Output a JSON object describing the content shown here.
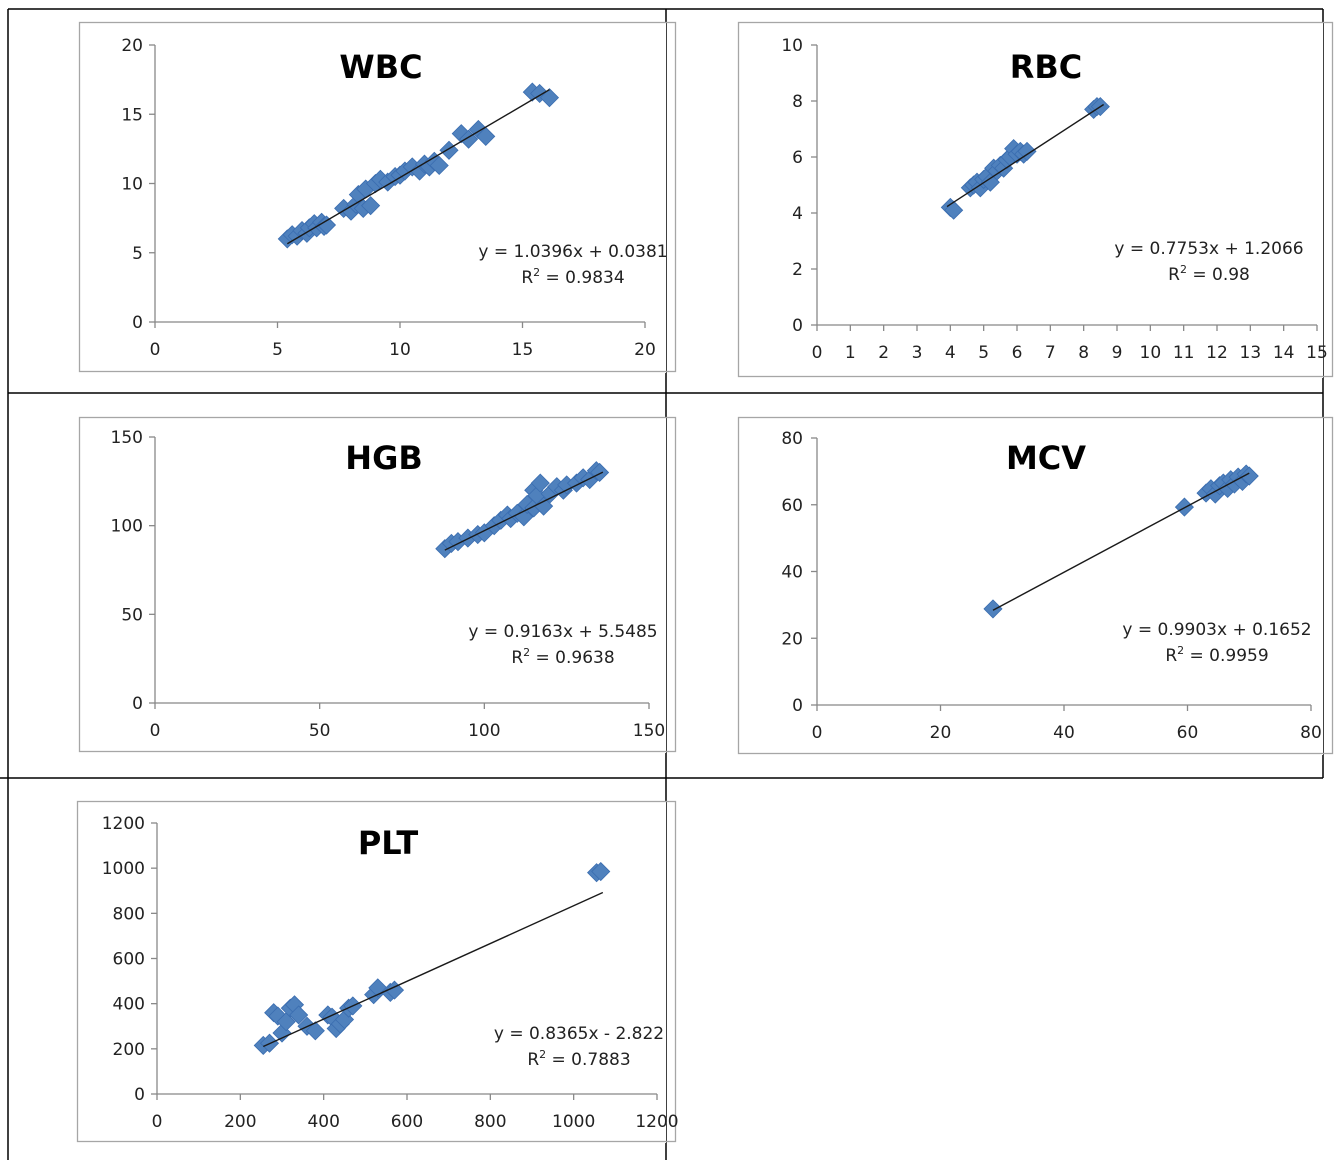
{
  "colors": {
    "marker": "#4F81BD",
    "marker_edge": "#3A6DB0",
    "trendline": "#1a1a1a",
    "axis": "#888888",
    "border": "#a6a6a6",
    "cell_line": "#000000"
  },
  "chart_data": [
    {
      "type": "scatter",
      "title": "WBC",
      "xlim": [
        0,
        20
      ],
      "ylim": [
        0,
        20
      ],
      "xticks": [
        "0",
        "5",
        "10",
        "15",
        "20"
      ],
      "yticks": [
        "0",
        "5",
        "10",
        "15",
        "20"
      ],
      "x": [
        5.4,
        5.6,
        5.8,
        6.0,
        6.2,
        6.3,
        6.5,
        6.6,
        6.8,
        6.9,
        7.0,
        7.7,
        8.0,
        8.2,
        8.3,
        8.5,
        8.6,
        8.8,
        9.0,
        9.2,
        9.5,
        9.8,
        10.0,
        10.2,
        10.5,
        10.8,
        11.0,
        11.2,
        11.4,
        11.6,
        12.0,
        12.5,
        12.8,
        13.2,
        13.5,
        15.4,
        15.7,
        16.1
      ],
      "y": [
        6.0,
        6.3,
        6.2,
        6.6,
        6.4,
        6.8,
        7.1,
        6.8,
        7.2,
        6.9,
        7.0,
        8.2,
        8.0,
        8.5,
        9.2,
        8.2,
        9.6,
        8.4,
        10.0,
        10.3,
        10.1,
        10.5,
        10.6,
        10.9,
        11.2,
        10.9,
        11.4,
        11.2,
        11.6,
        11.3,
        12.4,
        13.6,
        13.2,
        13.9,
        13.4,
        16.6,
        16.5,
        16.2
      ],
      "trendline": {
        "slope": 1.0396,
        "intercept": 0.0381,
        "x_from": 5.4,
        "x_to": 16.1
      },
      "equation": "y = 1.0396x + 0.0381",
      "r2_label": "R",
      "r2_value": " = 0.9834"
    },
    {
      "type": "scatter",
      "title": "RBC",
      "xlim": [
        0,
        15
      ],
      "ylim": [
        0,
        10
      ],
      "xticks": [
        "0",
        "1",
        "2",
        "3",
        "4",
        "5",
        "6",
        "7",
        "8",
        "9",
        "10",
        "11",
        "12",
        "13",
        "14",
        "15"
      ],
      "yticks": [
        "0",
        "2",
        "4",
        "6",
        "8",
        "10"
      ],
      "x": [
        4.0,
        4.1,
        4.6,
        4.7,
        4.8,
        4.9,
        5.0,
        5.1,
        5.2,
        5.3,
        5.4,
        5.5,
        5.6,
        5.7,
        5.8,
        5.9,
        6.0,
        6.1,
        6.2,
        6.3,
        8.3,
        8.4,
        8.5
      ],
      "y": [
        4.2,
        4.1,
        4.9,
        5.0,
        5.1,
        4.9,
        5.2,
        5.3,
        5.1,
        5.6,
        5.5,
        5.7,
        5.6,
        5.9,
        6.0,
        6.3,
        6.1,
        6.2,
        6.1,
        6.2,
        7.7,
        7.8,
        7.8
      ],
      "trendline": {
        "slope": 0.7753,
        "intercept": 1.2066,
        "x_from": 3.9,
        "x_to": 8.6
      },
      "equation": "y = 0.7753x + 1.2066",
      "r2_label": "R",
      "r2_value": " = 0.98"
    },
    {
      "type": "scatter",
      "title": "HGB",
      "xlim": [
        0,
        150
      ],
      "ylim": [
        0,
        150
      ],
      "xticks": [
        "0",
        "50",
        "100",
        "150"
      ],
      "yticks": [
        "0",
        "50",
        "100",
        "150"
      ],
      "x": [
        88,
        90,
        92,
        95,
        98,
        100,
        103,
        105,
        107,
        108,
        110,
        112,
        113,
        115,
        115,
        116,
        117,
        118,
        120,
        122,
        124,
        125,
        128,
        130,
        132,
        134,
        135
      ],
      "y": [
        87,
        90,
        91,
        93,
        95,
        96,
        100,
        103,
        106,
        104,
        107,
        105,
        112,
        110,
        120,
        117,
        124,
        111,
        118,
        122,
        120,
        123,
        124,
        127,
        126,
        131,
        130
      ],
      "trendline": {
        "slope": 0.9163,
        "intercept": 5.5485,
        "x_from": 88,
        "x_to": 136
      },
      "equation": "y = 0.9163x + 5.5485",
      "r2_label": "R",
      "r2_value": " = 0.9638"
    },
    {
      "type": "scatter",
      "title": "MCV",
      "xlim": [
        0,
        80
      ],
      "ylim": [
        0,
        80
      ],
      "xticks": [
        "0",
        "20",
        "40",
        "60",
        "80"
      ],
      "yticks": [
        "0",
        "20",
        "40",
        "60",
        "80"
      ],
      "x": [
        28.5,
        59.5,
        63.0,
        63.8,
        64.5,
        65.2,
        65.8,
        66.5,
        67.0,
        67.6,
        68.2,
        68.9,
        69.5,
        70.0
      ],
      "y": [
        28.8,
        59.3,
        63.5,
        64.8,
        63.2,
        65.7,
        66.5,
        64.9,
        67.5,
        66.2,
        68.3,
        67.0,
        69.2,
        68.6
      ],
      "trendline": {
        "slope": 0.9903,
        "intercept": 0.1652,
        "x_from": 28.5,
        "x_to": 70
      },
      "equation": "y = 0.9903x + 0.1652",
      "r2_label": "R",
      "r2_value": " = 0.9959"
    },
    {
      "type": "scatter",
      "title": "PLT",
      "xlim": [
        0,
        1200
      ],
      "ylim": [
        0,
        1200
      ],
      "xticks": [
        "0",
        "200",
        "400",
        "600",
        "800",
        "1000",
        "1200"
      ],
      "yticks": [
        "0",
        "200",
        "400",
        "600",
        "800",
        "1000",
        "1200"
      ],
      "x": [
        255,
        270,
        280,
        290,
        300,
        310,
        320,
        330,
        340,
        360,
        380,
        410,
        420,
        430,
        440,
        450,
        460,
        470,
        520,
        530,
        560,
        570,
        1055,
        1065
      ],
      "y": [
        215,
        225,
        360,
        345,
        270,
        320,
        380,
        395,
        350,
        300,
        280,
        350,
        340,
        290,
        310,
        330,
        380,
        390,
        440,
        470,
        450,
        460,
        980,
        985
      ],
      "trendline": {
        "slope": 0.8365,
        "intercept": -2.822,
        "x_from": 255,
        "x_to": 1070
      },
      "equation": "y = 0.8365x - 2.822",
      "r2_label": "R",
      "r2_value": " = 0.7883"
    }
  ]
}
